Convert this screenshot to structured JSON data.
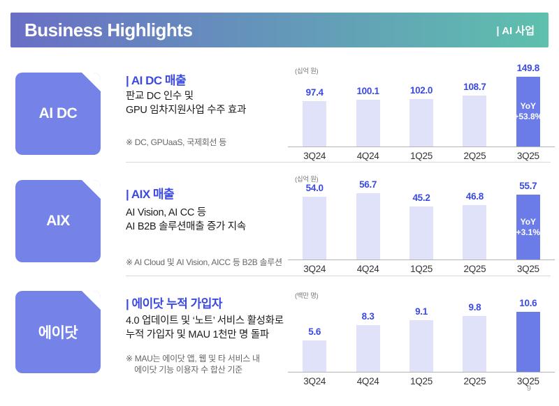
{
  "header": {
    "title": "Business Highlights",
    "tag": "| AI 사업"
  },
  "page_number": "9",
  "colors": {
    "header_gradient_left": "#6a6ec6",
    "header_gradient_right": "#5ec0ad",
    "badge": "#7583e8",
    "bar_light": "#dfe2f8",
    "bar_highlight": "#6b7be8",
    "accent_blue": "#3a49e4",
    "body_text": "#1c1c1c",
    "footnote_text": "#666666"
  },
  "sections": [
    {
      "badge_label": "AI DC",
      "heading": "| AI DC 매출",
      "body": "판교 DC 인수 및\nGPU 임차지원사업 수주 효과",
      "footnote": "※ DC, GPUaaS, 국제회선 등"
    },
    {
      "badge_label": "AIX",
      "heading": "| AIX 매출",
      "body": "AI Vision, AI CC 등\nAI B2B 솔루션매출 증가 지속",
      "footnote": "※ AI Cloud 및 AI Vision, AICC 등 B2B 솔루션"
    },
    {
      "badge_label": "에이닷",
      "heading": "| 에이닷 누적 가입자",
      "body": "4.0 업데이트 및 ‘노트’ 서비스 활성화로\n누적 가입자 및 MAU 1천만 명 돌파",
      "footnote": "※ MAU는 에이닷 앱, 웹 및 타 서비스 내\n    에이닷 기능 이용자 수 합산 기준"
    }
  ],
  "chart_data": [
    {
      "type": "bar",
      "title": "AI DC 매출",
      "unit_label": "(십억 원)",
      "categories": [
        "3Q24",
        "4Q24",
        "1Q25",
        "2Q25",
        "3Q25"
      ],
      "values": [
        97.4,
        100.1,
        102.0,
        108.7,
        149.8
      ],
      "value_labels": [
        "97.4",
        "100.1",
        "102.0",
        "108.7",
        "149.8"
      ],
      "highlight_index": 4,
      "highlight_annotation": "YoY\n+53.8%",
      "ylim": [
        0,
        160
      ],
      "grid": false,
      "legend": null
    },
    {
      "type": "bar",
      "title": "AIX 매출",
      "unit_label": "(십억 원)",
      "categories": [
        "3Q24",
        "4Q24",
        "1Q25",
        "2Q25",
        "3Q25"
      ],
      "values": [
        54.0,
        56.7,
        45.2,
        46.8,
        55.7
      ],
      "value_labels": [
        "54.0",
        "56.7",
        "45.2",
        "46.8",
        "55.7"
      ],
      "highlight_index": 4,
      "highlight_annotation": "YoY\n+3.1%",
      "ylim": [
        0,
        60
      ],
      "grid": false,
      "legend": null
    },
    {
      "type": "bar",
      "title": "에이닷 누적 가입자",
      "unit_label": "(백만 명)",
      "categories": [
        "3Q24",
        "4Q24",
        "1Q25",
        "2Q25",
        "3Q25"
      ],
      "values": [
        5.6,
        8.3,
        9.1,
        9.8,
        10.6
      ],
      "value_labels": [
        "5.6",
        "8.3",
        "9.1",
        "9.8",
        "10.6"
      ],
      "highlight_index": 4,
      "highlight_annotation": null,
      "ylim": [
        0,
        12
      ],
      "grid": false,
      "legend": null
    }
  ]
}
